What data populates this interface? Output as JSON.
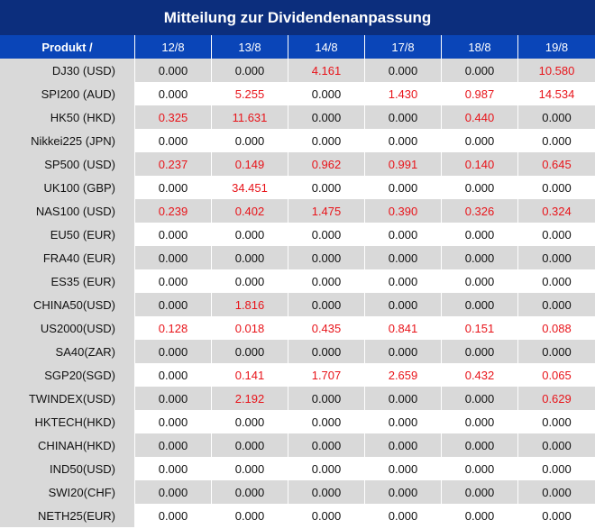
{
  "title": "Mitteilung zur Dividendenanpassung",
  "columns": [
    "Produkt /",
    "12/8",
    "13/8",
    "14/8",
    "17/8",
    "18/8",
    "19/8"
  ],
  "rows": [
    {
      "product": "DJ30 (USD)",
      "values": [
        "0.000",
        "0.000",
        "4.161",
        "0.000",
        "0.000",
        "10.580"
      ]
    },
    {
      "product": "SPI200 (AUD)",
      "values": [
        "0.000",
        "5.255",
        "0.000",
        "1.430",
        "0.987",
        "14.534"
      ]
    },
    {
      "product": "HK50 (HKD)",
      "values": [
        "0.325",
        "11.631",
        "0.000",
        "0.000",
        "0.440",
        "0.000"
      ]
    },
    {
      "product": "Nikkei225 (JPN)",
      "values": [
        "0.000",
        "0.000",
        "0.000",
        "0.000",
        "0.000",
        "0.000"
      ]
    },
    {
      "product": "SP500 (USD)",
      "values": [
        "0.237",
        "0.149",
        "0.962",
        "0.991",
        "0.140",
        "0.645"
      ]
    },
    {
      "product": "UK100 (GBP)",
      "values": [
        "0.000",
        "34.451",
        "0.000",
        "0.000",
        "0.000",
        "0.000"
      ]
    },
    {
      "product": "NAS100 (USD)",
      "values": [
        "0.239",
        "0.402",
        "1.475",
        "0.390",
        "0.326",
        "0.324"
      ]
    },
    {
      "product": "EU50 (EUR)",
      "values": [
        "0.000",
        "0.000",
        "0.000",
        "0.000",
        "0.000",
        "0.000"
      ]
    },
    {
      "product": "FRA40 (EUR)",
      "values": [
        "0.000",
        "0.000",
        "0.000",
        "0.000",
        "0.000",
        "0.000"
      ]
    },
    {
      "product": "ES35 (EUR)",
      "values": [
        "0.000",
        "0.000",
        "0.000",
        "0.000",
        "0.000",
        "0.000"
      ]
    },
    {
      "product": "CHINA50(USD)",
      "values": [
        "0.000",
        "1.816",
        "0.000",
        "0.000",
        "0.000",
        "0.000"
      ]
    },
    {
      "product": "US2000(USD)",
      "values": [
        "0.128",
        "0.018",
        "0.435",
        "0.841",
        "0.151",
        "0.088"
      ]
    },
    {
      "product": "SA40(ZAR)",
      "values": [
        "0.000",
        "0.000",
        "0.000",
        "0.000",
        "0.000",
        "0.000"
      ]
    },
    {
      "product": "SGP20(SGD)",
      "values": [
        "0.000",
        "0.141",
        "1.707",
        "2.659",
        "0.432",
        "0.065"
      ]
    },
    {
      "product": "TWINDEX(USD)",
      "values": [
        "0.000",
        "2.192",
        "0.000",
        "0.000",
        "0.000",
        "0.629"
      ]
    },
    {
      "product": "HKTECH(HKD)",
      "values": [
        "0.000",
        "0.000",
        "0.000",
        "0.000",
        "0.000",
        "0.000"
      ]
    },
    {
      "product": "CHINAH(HKD)",
      "values": [
        "0.000",
        "0.000",
        "0.000",
        "0.000",
        "0.000",
        "0.000"
      ]
    },
    {
      "product": "IND50(USD)",
      "values": [
        "0.000",
        "0.000",
        "0.000",
        "0.000",
        "0.000",
        "0.000"
      ]
    },
    {
      "product": "SWI20(CHF)",
      "values": [
        "0.000",
        "0.000",
        "0.000",
        "0.000",
        "0.000",
        "0.000"
      ]
    },
    {
      "product": "NETH25(EUR)",
      "values": [
        "0.000",
        "0.000",
        "0.000",
        "0.000",
        "0.000",
        "0.000"
      ]
    }
  ],
  "colors": {
    "title_bg": "#0c2e7d",
    "header_bg": "#0a45b8",
    "stripe": "#d9d9d9",
    "highlight_text": "#e8141a"
  }
}
